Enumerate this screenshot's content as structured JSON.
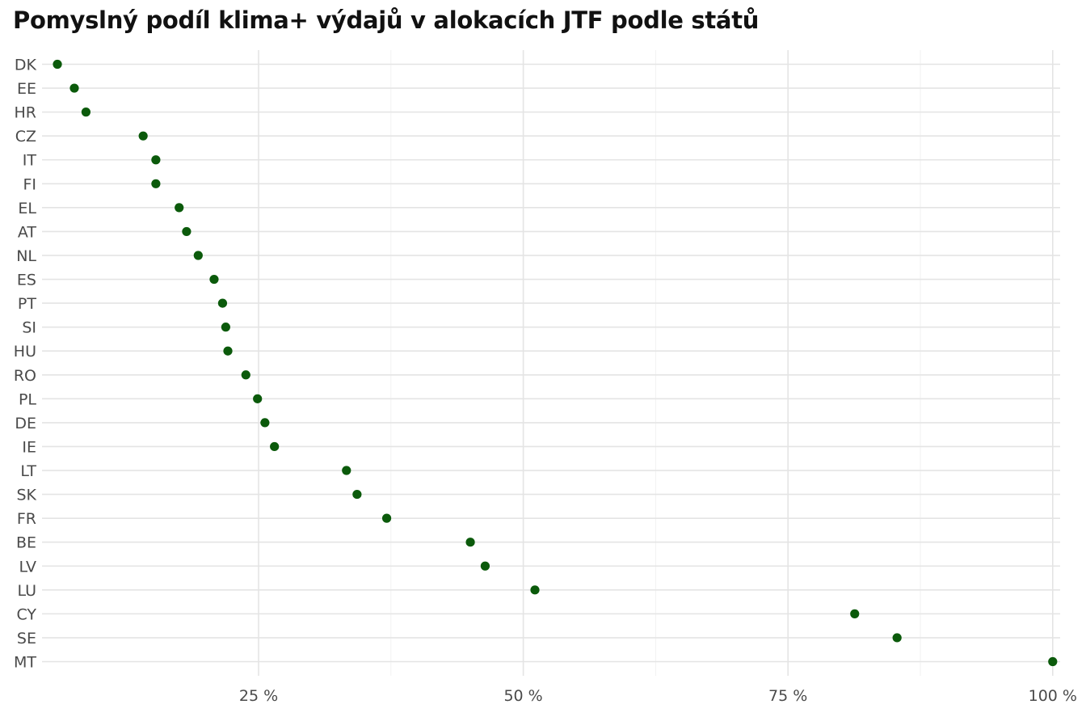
{
  "chart_data": {
    "type": "scatter",
    "title": "Pomyslný podíl klima+ výdajů v alokacích JTF podle států",
    "xlabel": "",
    "ylabel": "",
    "xlim": [
      4.2,
      101
    ],
    "x_ticks": [
      25,
      50,
      75,
      100
    ],
    "x_tick_labels": [
      "25 %",
      "50 %",
      "75 %",
      "100 %"
    ],
    "grid": true,
    "legend": "none",
    "point_color": "#0b5a0b",
    "categories": [
      "DK",
      "EE",
      "HR",
      "CZ",
      "IT",
      "FI",
      "EL",
      "AT",
      "NL",
      "ES",
      "PT",
      "SI",
      "HU",
      "RO",
      "PL",
      "DE",
      "IE",
      "LT",
      "SK",
      "FR",
      "BE",
      "LV",
      "LU",
      "CY",
      "SE",
      "MT"
    ],
    "values": [
      6.0,
      7.6,
      8.7,
      14.1,
      15.3,
      15.3,
      17.5,
      18.2,
      19.3,
      20.8,
      21.6,
      21.9,
      22.1,
      23.8,
      24.9,
      25.6,
      26.5,
      33.3,
      34.3,
      37.1,
      45.0,
      46.4,
      51.1,
      81.3,
      85.3,
      100.0
    ]
  }
}
